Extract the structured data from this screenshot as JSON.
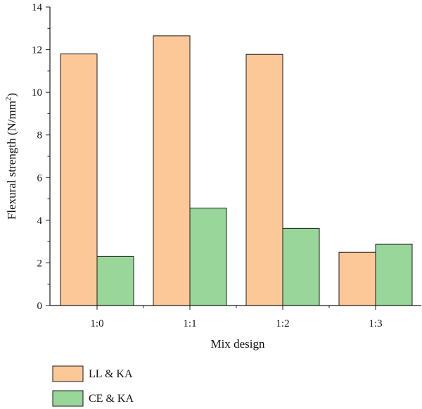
{
  "chart_data": {
    "type": "bar",
    "xlabel": "Mix design",
    "ylabel": "Flexural strength (N/mm",
    "ylabel_sup": "2",
    "ylabel_suffix": ")",
    "categories": [
      "1:0",
      "1:1",
      "1:2",
      "1:3"
    ],
    "ylim": [
      0,
      14
    ],
    "yticks": [
      0,
      2,
      4,
      6,
      8,
      10,
      12,
      14
    ],
    "grid": false,
    "legend_position": "bottom-left",
    "series": [
      {
        "name": "LL & KA",
        "color": "#FDC898",
        "values": [
          11.8,
          12.65,
          11.78,
          2.5
        ]
      },
      {
        "name": "CE & KA",
        "color": "#98D69A",
        "values": [
          2.3,
          4.57,
          3.62,
          2.87
        ]
      }
    ]
  }
}
